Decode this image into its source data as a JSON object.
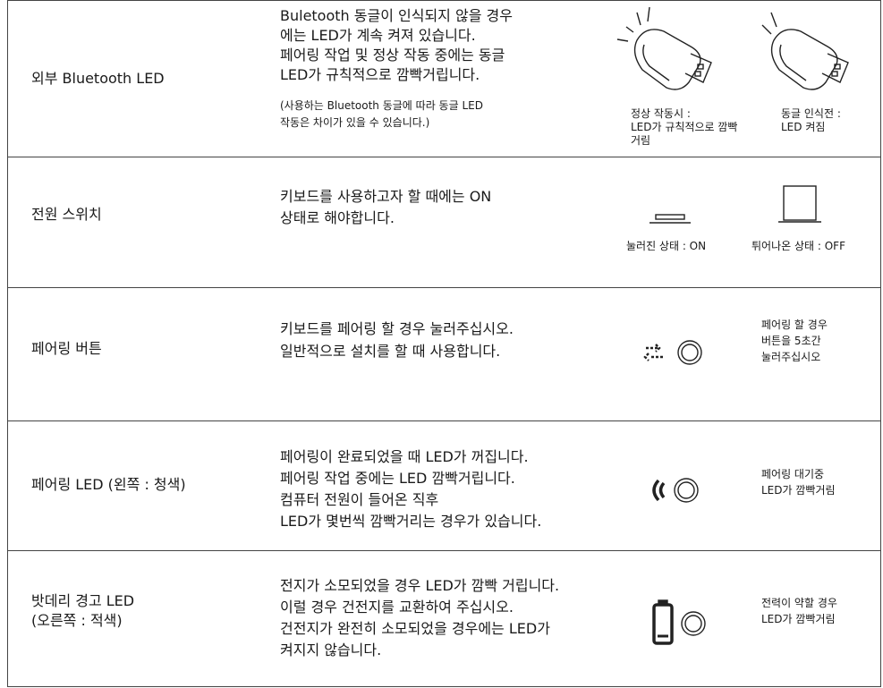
{
  "rows": [
    {
      "label": [
        "외부 Bluetooth LED"
      ],
      "description": [
        "Buletooth 동글이 인식되지 않을 경우",
        "에는 LED가 계속 켜져 있습니다.",
        "페어링 작업 및 정상 작동 중에는 동글",
        "LED가 규칙적으로 깜빡거립니다."
      ],
      "note": [
        "(사용하는 Bluetooth 동글에 따라 동글 LED",
        "작동은 차이가 있을 수 있습니다.)"
      ],
      "captions": [
        [
          "정상 작동시 :",
          "LED가 규칙적으로 깜빡",
          "거림"
        ],
        [
          "동글 인식전 :",
          "LED 켜짐"
        ]
      ]
    },
    {
      "label": [
        "전원 스위치"
      ],
      "description": [
        "키보드를 사용하고자 할 때에는 ON",
        "상태로 해야합니다."
      ],
      "captions": [
        [
          "눌러진 상태 : ON"
        ],
        [
          "튀어나온 상태 : OFF"
        ]
      ]
    },
    {
      "label": [
        "페어링 버튼"
      ],
      "description": [
        "키보드를 페어링 할 경우 눌러주십시오.",
        "일반적으로 설치를 할 때 사용합니다."
      ],
      "captions": [
        [
          "페어링 할 경우",
          "버튼을 5초간",
          "눌러주십시오"
        ]
      ]
    },
    {
      "label": [
        "페어링 LED (왼쪽 : 청색)"
      ],
      "description": [
        "페어링이 완료되었을 때 LED가 꺼집니다.",
        "페어링 작업 중에는 LED 깜빡거립니다.",
        "컴퓨터 전원이 들어온 직후",
        "LED가 몇번씩 깜빡거리는 경우가 있습니다."
      ],
      "captions": [
        [
          "페어링 대기중",
          "LED가 깜빡거림"
        ]
      ]
    },
    {
      "label": [
        "밧데리 경고  LED",
        "(오른쪽 : 적색)"
      ],
      "description": [
        "전지가 소모되었을 경우 LED가 깜빡 거립니다.",
        "이럴 경우 건전지를 교환하여 주십시오.",
        "건전지가 완전히 소모되었을 경우에는 LED가",
        "켜지지 않습니다."
      ],
      "captions": [
        [
          "전력이 약할 경우",
          "LED가 깜빡거림"
        ]
      ]
    }
  ]
}
